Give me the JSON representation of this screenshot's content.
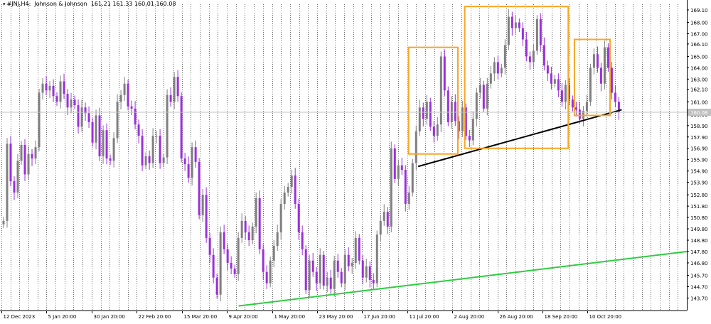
{
  "header": {
    "symbol": "#JNJ",
    "timeframe": "H4",
    "name": "Johnson & Johnson",
    "ohlc": "161.21 161.33 160.01 160.08"
  },
  "price_label": "160.08",
  "colors": {
    "bull": "#7f7f7f",
    "bear": "#9b30d9",
    "trend_green": "#2ecc40",
    "trend_black": "#000000",
    "box_orange": "#f5a623",
    "price_line": "#c0c0c0"
  },
  "chart_data": {
    "type": "line",
    "title": "",
    "ylim": [
      142.6,
      169.6
    ],
    "grid": "vertical dotted",
    "y_ticks": [
      169.1,
      168.0,
      167.0,
      166.1,
      165.0,
      164.0,
      163.0,
      162.1,
      161.0,
      159.9,
      158.9,
      157.9,
      156.9,
      155.9,
      154.9,
      153.9,
      152.8,
      151.8,
      150.8,
      149.8,
      148.8,
      147.8,
      146.8,
      145.7,
      144.7,
      143.7
    ],
    "y_tick_labels": [
      "169.10",
      "168.00",
      "167.00",
      "166.10",
      "165.00",
      "164.00",
      "163.00",
      "162.10",
      "161.00",
      "159.90",
      "158.90",
      "157.90",
      "156.90",
      "155.90",
      "154.90",
      "153.90",
      "152.80",
      "151.80",
      "150.80",
      "149.80",
      "148.80",
      "147.80",
      "146.80",
      "145.70",
      "144.70",
      "143.70"
    ],
    "x_labels": [
      "12 Dec 2023",
      "5 Jan 20:00",
      "30 Jan 20:00",
      "22 Feb 20:00",
      "15 Mar 20:00",
      "9 Apr 20:00",
      "1 May 20:00",
      "23 May 20:00",
      "17 Jun 20:00",
      "11 Jul 20:00",
      "2 Aug 20:00",
      "26 Aug 20:00",
      "18 Sep 20:00",
      "10 Oct 20:00"
    ],
    "x_label_index": [
      0,
      5,
      10,
      15,
      20,
      25,
      30,
      35,
      40,
      45,
      50,
      55,
      60,
      65
    ],
    "session_count": 76,
    "series": [
      {
        "values": [
          150.5,
          157.3,
          154.0,
          153.0,
          155.8,
          157.2,
          154.6,
          156.4,
          156.0,
          157.0,
          161.8,
          162.6,
          162.0,
          162.4,
          161.5,
          161.0,
          162.8,
          161.7,
          160.5,
          161.2,
          160.7,
          158.8,
          160.5,
          160.0,
          159.2,
          157.4,
          159.8,
          156.2,
          158.5,
          156.0,
          155.8,
          157.8,
          161.0,
          161.6,
          162.6,
          160.6,
          160.4,
          159.0,
          158.0,
          155.4,
          156.2,
          155.6,
          158.0,
          158.0,
          155.6,
          156.1,
          161.6,
          161.0,
          163.2,
          161.5,
          156.0,
          155.5,
          154.3,
          157.0,
          155.7,
          151.0,
          152.8,
          149.0,
          147.5,
          145.5,
          144.0,
          149.5,
          148.0,
          146.8,
          146.3,
          145.8,
          149.0,
          150.5,
          149.5,
          148.8,
          150.0,
          152.5,
          148.0,
          146.0,
          145.0,
          147.0,
          148.3,
          149.5,
          152.0,
          153.0,
          153.5,
          154.5,
          152.0,
          149.5,
          148.0,
          144.4,
          147.0,
          146.0,
          145.0,
          147.5,
          144.8,
          145.5,
          144.5,
          147.0,
          146.0,
          145.0,
          147.5,
          146.5,
          146.8,
          149.0,
          147.0,
          145.5,
          146.5,
          145.3,
          145.0,
          149.3,
          150.5,
          151.3,
          150.0,
          156.9,
          154.2,
          155.4,
          155.0,
          152.0,
          153.0,
          155.6,
          158.4,
          160.5,
          159.5,
          161.0,
          158.8,
          158.0,
          159.0,
          165.0,
          162.0,
          159.2,
          161.0,
          159.3,
          158.4,
          160.5,
          158.0,
          157.6,
          159.5,
          161.8,
          162.5,
          160.4,
          162.6,
          163.5,
          164.5,
          163.5,
          164.0,
          166.0,
          168.5,
          167.5,
          168.0,
          167.5,
          166.5,
          165.0,
          164.5,
          165.5,
          168.3,
          166.0,
          164.2,
          163.5,
          162.6,
          163.0,
          162.0,
          161.0,
          162.5,
          161.2,
          160.5,
          160.3,
          159.5,
          160.2,
          161.0,
          164.0,
          165.2,
          164.0,
          162.6,
          165.8,
          164.0,
          161.8,
          161.0,
          160.08
        ]
      }
    ],
    "annotations": {
      "green_trendline": {
        "from": [
          0.346,
          143.0
        ],
        "to": [
          1.0,
          147.8
        ]
      },
      "black_trendline": {
        "from": [
          0.608,
          155.3
        ],
        "to": [
          0.905,
          160.3
        ]
      },
      "orange_boxes": [
        {
          "x": [
            0.594,
            0.666
          ],
          "y": [
            156.4,
            165.8
          ]
        },
        {
          "x": [
            0.676,
            0.827
          ],
          "y": [
            156.9,
            169.4
          ]
        },
        {
          "x": [
            0.836,
            0.888
          ],
          "y": [
            159.8,
            166.5
          ]
        }
      ]
    }
  }
}
